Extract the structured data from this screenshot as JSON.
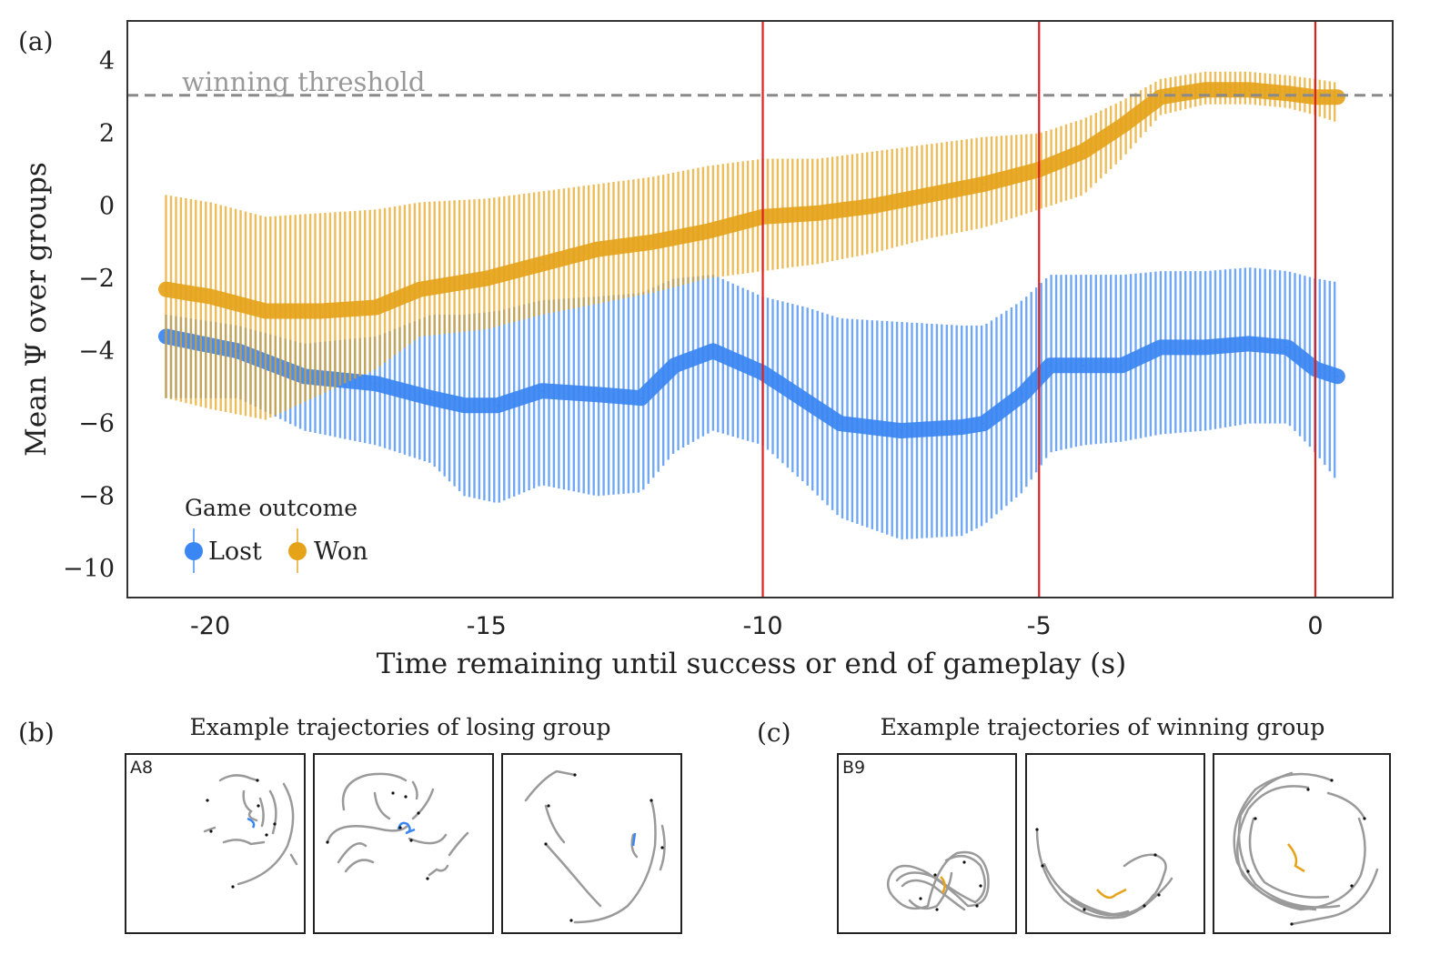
{
  "panel_a": {
    "label": "(a)",
    "threshold_label": "winning threshold",
    "legend": {
      "title": "Game outcome",
      "lost": "Lost",
      "won": "Won"
    }
  },
  "panel_b": {
    "label": "(b)",
    "title": "Example trajectories of losing group",
    "first_box_tag": "A8"
  },
  "panel_c": {
    "label": "(c)",
    "title": "Example trajectories of winning group",
    "first_box_tag": "B9"
  },
  "colors": {
    "lost": "#3a86f2",
    "won": "#e5a31a",
    "threshold": "#8a8a8a",
    "markers": "#e01f1f",
    "trajectory": "#9a9a9a"
  },
  "chart_data": {
    "type": "line",
    "xlabel": "Time remaining until success or end of gameplay (s)",
    "ylabel": "Mean Ψ over groups",
    "xlim": [
      -21.5,
      1.4
    ],
    "ylim": [
      -10.8,
      5.1
    ],
    "xticks": [
      -20,
      -15,
      -10,
      -5,
      0
    ],
    "xtick_labels": [
      "-20",
      "-15",
      "-10",
      "-5",
      "0"
    ],
    "yticks": [
      4,
      2,
      0,
      -2,
      -4,
      -6,
      -8,
      -10
    ],
    "ytick_labels": [
      "4",
      "2",
      "0",
      "−2",
      "−4",
      "−6",
      "−8",
      "−10"
    ],
    "threshold": 3.05,
    "vertical_lines": [
      -10,
      -5,
      0
    ],
    "grid": false,
    "legend_position": "bottom-left",
    "series": [
      {
        "name": "Lost",
        "x": [
          -20.8,
          -19.5,
          -18.3,
          -17,
          -16,
          -15.4,
          -14.8,
          -14,
          -13,
          -12.2,
          -11.6,
          -10.9,
          -10,
          -9.2,
          -8.6,
          -7.5,
          -6.4,
          -6,
          -5.3,
          -4.8,
          -4.2,
          -3.5,
          -2.8,
          -2,
          -1.2,
          -0.5,
          0,
          0.4
        ],
        "y": [
          -3.6,
          -4.0,
          -4.7,
          -4.9,
          -5.3,
          -5.5,
          -5.5,
          -5.1,
          -5.2,
          -5.3,
          -4.4,
          -4.0,
          -4.6,
          -5.4,
          -6.0,
          -6.2,
          -6.1,
          -6.0,
          -5.2,
          -4.4,
          -4.4,
          -4.4,
          -3.9,
          -3.9,
          -3.8,
          -3.9,
          -4.5,
          -4.7
        ],
        "upper": [
          -3.0,
          -3.3,
          -3.8,
          -3.6,
          -3.0,
          -3.0,
          -2.9,
          -2.6,
          -2.5,
          -2.4,
          -2.0,
          -1.9,
          -2.5,
          -2.8,
          -3.1,
          -3.2,
          -3.3,
          -3.3,
          -2.6,
          -1.9,
          -1.9,
          -1.9,
          -1.8,
          -1.8,
          -1.7,
          -1.8,
          -2.0,
          -2.1
        ],
        "lower": [
          -5.3,
          -5.3,
          -6.2,
          -6.6,
          -7.1,
          -8.0,
          -8.2,
          -7.7,
          -8.0,
          -7.9,
          -6.8,
          -6.2,
          -6.6,
          -7.7,
          -8.6,
          -9.2,
          -9.1,
          -8.8,
          -7.9,
          -6.8,
          -6.6,
          -6.5,
          -6.3,
          -6.2,
          -6.0,
          -6.0,
          -6.8,
          -7.6
        ]
      },
      {
        "name": "Won",
        "x": [
          -20.8,
          -20,
          -19,
          -18,
          -17,
          -16.2,
          -15,
          -14,
          -13,
          -12,
          -11,
          -10,
          -9,
          -8,
          -7,
          -6,
          -5,
          -4.2,
          -3.5,
          -2.8,
          -2,
          -1.2,
          -0.5,
          0,
          0.4
        ],
        "y": [
          -2.3,
          -2.5,
          -2.9,
          -2.9,
          -2.8,
          -2.3,
          -2.0,
          -1.6,
          -1.2,
          -1.0,
          -0.7,
          -0.3,
          -0.2,
          0.0,
          0.3,
          0.6,
          1.0,
          1.5,
          2.2,
          3.0,
          3.2,
          3.2,
          3.1,
          3.0,
          3.0
        ],
        "upper": [
          0.3,
          0.1,
          -0.3,
          -0.2,
          -0.1,
          0.1,
          0.2,
          0.4,
          0.6,
          0.8,
          1.1,
          1.3,
          1.3,
          1.5,
          1.7,
          1.9,
          2.0,
          2.4,
          2.9,
          3.5,
          3.7,
          3.7,
          3.6,
          3.5,
          3.4
        ],
        "lower": [
          -5.3,
          -5.6,
          -5.9,
          -5.2,
          -4.5,
          -3.6,
          -3.4,
          -3.0,
          -2.7,
          -2.4,
          -2.0,
          -1.8,
          -1.6,
          -1.3,
          -0.9,
          -0.6,
          -0.1,
          0.3,
          1.3,
          2.5,
          2.8,
          2.8,
          2.7,
          2.5,
          2.3
        ]
      }
    ]
  }
}
